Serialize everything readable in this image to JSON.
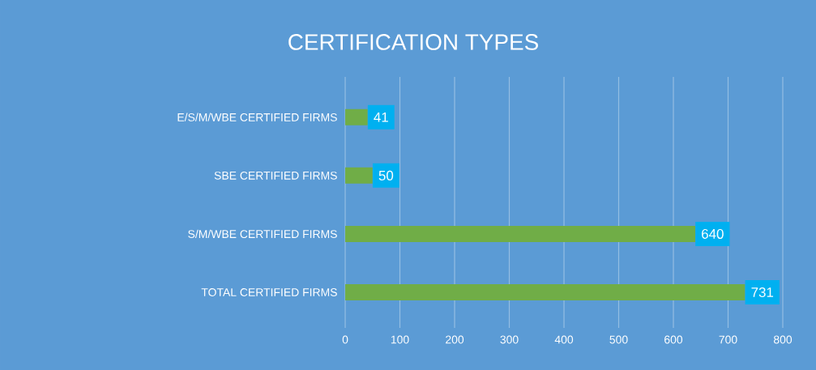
{
  "chart_data": {
    "type": "bar",
    "orientation": "horizontal",
    "title": "CERTIFICATION TYPES",
    "categories": [
      "E/S/M/WBE CERTIFIED FIRMS",
      "SBE CERTIFIED FIRMS",
      "S/M/WBE CERTIFIED FIRMS",
      "TOTAL CERTIFIED FIRMS"
    ],
    "values": [
      41,
      50,
      640,
      731
    ],
    "color": "#70ad47",
    "data_labels": true,
    "grid": "x",
    "xlim": [
      0,
      800
    ],
    "xticks": [
      0,
      100,
      200,
      300,
      400,
      500,
      600,
      700,
      800
    ]
  }
}
